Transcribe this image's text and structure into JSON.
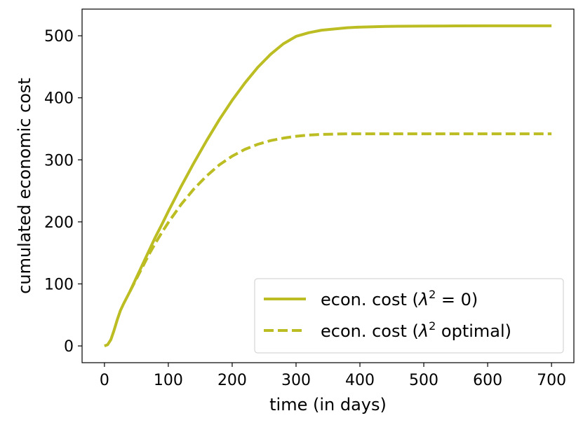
{
  "chart_data": {
    "type": "line",
    "xlabel": "time (in days)",
    "ylabel": "cumulated economic cost",
    "xlim": [
      -35,
      735
    ],
    "ylim": [
      -27,
      543
    ],
    "xticks": [
      0,
      100,
      200,
      300,
      400,
      500,
      600,
      700
    ],
    "yticks": [
      0,
      100,
      200,
      300,
      400,
      500
    ],
    "grid": false,
    "legend_position": "lower-right",
    "line_color": "#bcbd22",
    "series": [
      {
        "name": "econ. cost (λ² = 0)",
        "legend_main": "econ. cost (",
        "legend_lambda": "λ",
        "legend_sup": "2",
        "legend_tail": " = 0)",
        "style": "solid",
        "x": [
          0,
          5,
          10,
          15,
          20,
          25,
          30,
          40,
          50,
          60,
          70,
          80,
          90,
          100,
          120,
          140,
          160,
          180,
          200,
          220,
          240,
          260,
          280,
          300,
          320,
          340,
          360,
          380,
          400,
          420,
          440,
          460,
          480,
          500,
          550,
          600,
          650,
          700
        ],
        "y": [
          0,
          2,
          10,
          25,
          42,
          57,
          68,
          88,
          110,
          132,
          154,
          176,
          196,
          217,
          257,
          295,
          331,
          365,
          396,
          424,
          449,
          470,
          487,
          499,
          505,
          509,
          511,
          513,
          514,
          514.5,
          515,
          515.3,
          515.5,
          515.7,
          515.9,
          516,
          516,
          516
        ]
      },
      {
        "name": "econ. cost (λ² optimal)",
        "legend_main": "econ. cost (",
        "legend_lambda": "λ",
        "legend_sup": "2",
        "legend_tail": " optimal)",
        "style": "dashed",
        "x": [
          40,
          50,
          60,
          70,
          80,
          90,
          100,
          120,
          140,
          160,
          180,
          200,
          220,
          240,
          260,
          280,
          300,
          320,
          340,
          360,
          380,
          400,
          450,
          500,
          550,
          600,
          650,
          700
        ],
        "y": [
          88,
          108,
          128,
          148,
          166,
          183,
          199,
          228,
          253,
          274,
          292,
          306,
          317,
          325,
          331,
          335,
          338,
          340,
          341,
          341.5,
          342,
          342,
          342,
          342,
          342,
          342,
          342,
          342
        ]
      }
    ]
  }
}
